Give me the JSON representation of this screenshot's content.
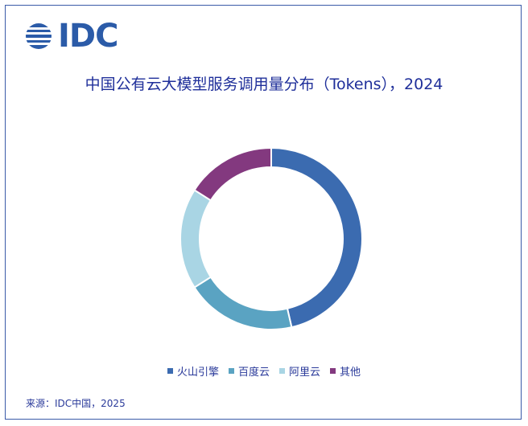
{
  "logo": {
    "text": "IDC"
  },
  "chart_data": {
    "type": "pie",
    "style": "donut",
    "title": "中国公有云大模型服务调用量分布（Tokens），2024",
    "categories": [
      "火山引擎",
      "百度云",
      "阿里云",
      "其他"
    ],
    "values": [
      46.4,
      19.6,
      18.0,
      16.0
    ],
    "colors": [
      "#3b6bb0",
      "#5aa3c2",
      "#a9d5e4",
      "#83397f"
    ],
    "legend_position": "bottom"
  },
  "footer": {
    "source": "来源：IDC中国，2025"
  }
}
